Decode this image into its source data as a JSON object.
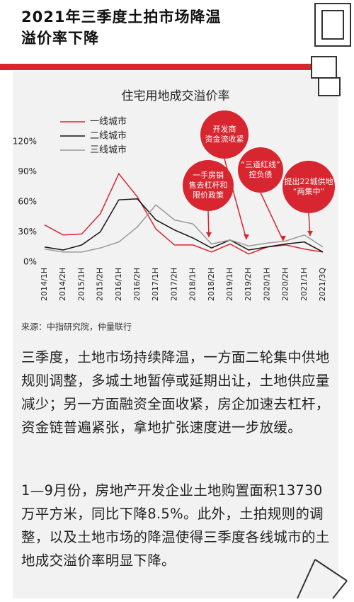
{
  "header": {
    "title": [
      "2021年三季度土拍市场降温",
      "溢价率下降"
    ]
  },
  "chart_data": {
    "type": "line",
    "title": "住宅用地成交溢价率",
    "categories": [
      "2014/1H",
      "2014/2H",
      "2015/1H",
      "2015/2H",
      "2016/1H",
      "2016/2H",
      "2017/1H",
      "2017/2H",
      "2018/1H",
      "2018/2H",
      "2019/1H",
      "2019/2H",
      "2020/1H",
      "2020/2H",
      "2021/1H",
      "2021/3Q"
    ],
    "series": [
      {
        "name": "一线城市",
        "color": "#d7262f",
        "values": [
          37,
          27,
          28,
          48,
          88,
          65,
          33,
          17,
          17,
          10,
          18,
          8,
          15,
          17,
          13,
          10
        ]
      },
      {
        "name": "二线城市",
        "color": "#111111",
        "values": [
          15,
          12,
          17,
          30,
          62,
          63,
          42,
          32,
          24,
          14,
          22,
          12,
          15,
          18,
          20,
          10
        ]
      },
      {
        "name": "三线城市",
        "color": "#9a9a9a",
        "values": [
          13,
          10,
          10,
          14,
          20,
          35,
          57,
          42,
          38,
          18,
          22,
          16,
          19,
          21,
          27,
          15
        ]
      }
    ],
    "ylim": [
      0,
      120
    ],
    "yticks": [
      {
        "value": 0,
        "label": "0%"
      },
      {
        "value": 30,
        "label": "30%"
      },
      {
        "value": 60,
        "label": "60%"
      },
      {
        "value": 90,
        "label": "90%"
      },
      {
        "value": 120,
        "label": "120%"
      }
    ],
    "annotations": [
      [
        "一手房销",
        "售去杠杆和",
        "限价政策"
      ],
      [
        "开发商",
        "资金流收紧"
      ],
      [
        "“三道红线”",
        "控负债"
      ],
      [
        "提出22城供地",
        "“两集中”"
      ]
    ],
    "source": "来源：中指研究院，仲量联行"
  },
  "paragraphs": [
    "三季度，土地市场持续降温，一方面二轮集中供地规则调整，多城土地暂停或延期出让，土地供应量减少；另一方面融资全面收紧，房企加速去杠杆，资金链普遍紧张，拿地扩张速度进一步放缓。",
    "1—9月份，房地产开发企业土地购置面积13730万平方米，同比下降8.5%。此外，土拍规则的调整，以及土地市场的降温使得三季度各线城市的土地成交溢价率明显下降。"
  ]
}
